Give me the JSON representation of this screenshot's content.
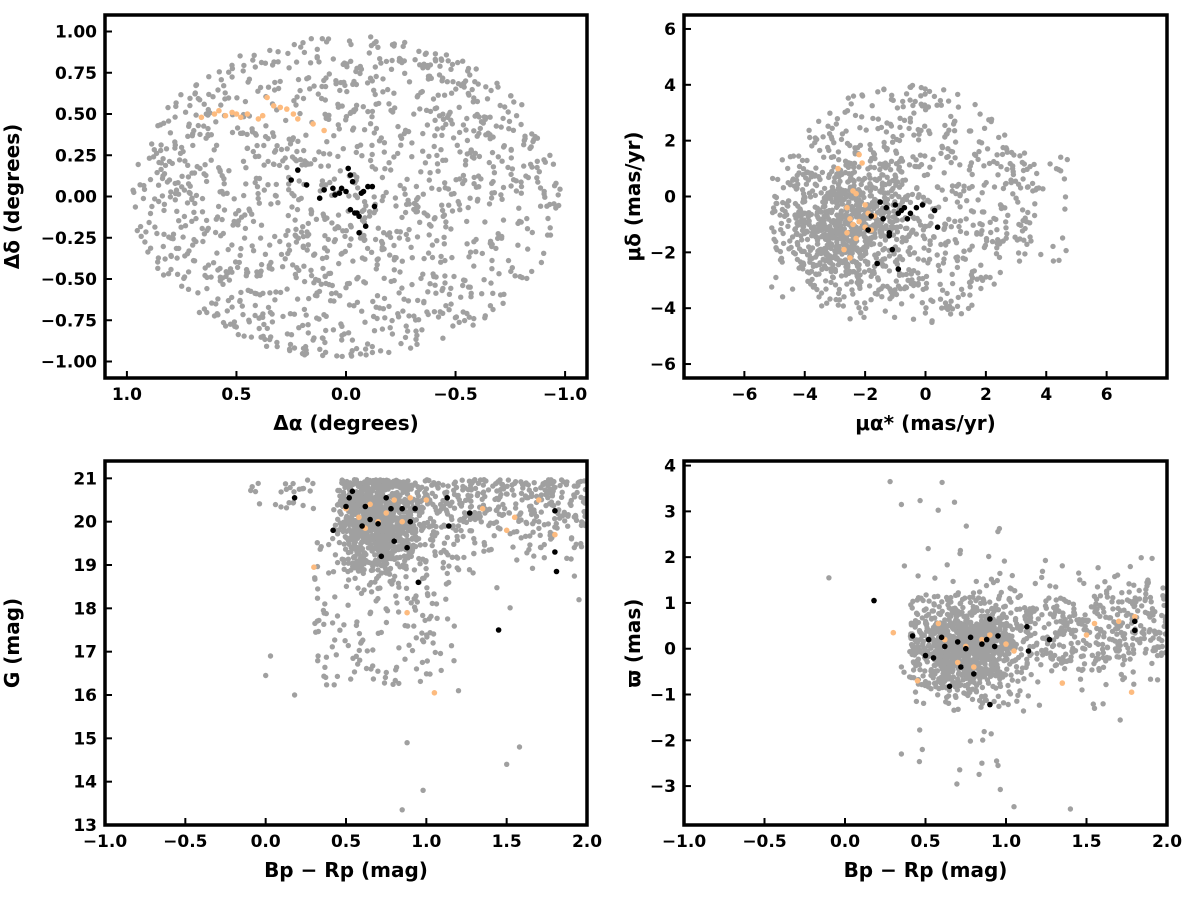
{
  "colors": {
    "field": "#a0a0a0",
    "stream": "#fdbb7f",
    "members": "#000000",
    "axes": "#000000"
  },
  "chart_data": [
    {
      "type": "scatter",
      "title": "",
      "xlabel": "Δα (degrees)",
      "ylabel": "Δδ (degrees)",
      "xlim": [
        1.1,
        -1.1
      ],
      "ylim": [
        -1.1,
        1.1
      ],
      "x_reversed": true,
      "grid": false,
      "xticks": [
        "1.0",
        "0.5",
        "0.0",
        "−0.5",
        "−1.0"
      ],
      "xtick_values": [
        1.0,
        0.5,
        0.0,
        -0.5,
        -1.0
      ],
      "yticks": [
        "−1.00",
        "−0.75",
        "−0.50",
        "−0.25",
        "0.00",
        "0.25",
        "0.50",
        "0.75",
        "1.00"
      ],
      "ytick_values": [
        -1.0,
        -0.75,
        -0.5,
        -0.25,
        0.0,
        0.25,
        0.5,
        0.75,
        1.0
      ],
      "series": [
        {
          "color": "#a0a0a0",
          "distribution": "uniform circle radius 1.0 deg",
          "count": 1300
        },
        {
          "color": "#fdbb7f",
          "x": [
            0.66,
            0.6,
            0.58,
            0.55,
            0.52,
            0.5,
            0.48,
            0.45,
            0.4,
            0.38,
            0.36,
            0.33,
            0.3,
            0.27,
            0.24,
            0.22,
            0.15,
            0.1
          ],
          "y": [
            0.48,
            0.5,
            0.52,
            0.49,
            0.51,
            0.5,
            0.48,
            0.5,
            0.47,
            0.49,
            0.6,
            0.55,
            0.54,
            0.53,
            0.5,
            0.47,
            0.44,
            0.4
          ]
        },
        {
          "color": "#000000",
          "x": [
            0.25,
            0.22,
            0.18,
            0.12,
            0.1,
            0.05,
            0.02,
            0.0,
            -0.01,
            -0.02,
            -0.04,
            -0.05,
            -0.06,
            -0.07,
            -0.08,
            -0.1,
            -0.12,
            -0.13,
            -0.03,
            -0.09,
            0.06,
            -0.06,
            -0.02,
            0.03
          ],
          "y": [
            0.1,
            0.16,
            0.07,
            -0.01,
            0.04,
            0.01,
            0.05,
            0.03,
            0.17,
            0.13,
            -0.1,
            -0.1,
            -0.12,
            0.02,
            0.03,
            0.06,
            0.06,
            -0.06,
            0.09,
            -0.18,
            0.05,
            -0.22,
            -0.08,
            0.02
          ]
        }
      ]
    },
    {
      "type": "scatter",
      "title": "",
      "xlabel": "μα* (mas/yr)",
      "ylabel": "μδ (mas/yr)",
      "xlim": [
        -8,
        8
      ],
      "ylim": [
        -6.5,
        6.5
      ],
      "grid": false,
      "xticks": [
        "−6",
        "−4",
        "−2",
        "0",
        "2",
        "4",
        "6"
      ],
      "xtick_values": [
        -6,
        -4,
        -2,
        0,
        2,
        4,
        6
      ],
      "yticks": [
        "−6",
        "−4",
        "−2",
        "0",
        "2",
        "4",
        "6"
      ],
      "ytick_values": [
        -6,
        -4,
        -2,
        0,
        2,
        4,
        6
      ],
      "series": [
        {
          "color": "#a0a0a0",
          "distribution": "dense clump near (-2.5, -1) within circle radius ~4 around (-0.5, -0.5), tail to x≈5",
          "count": 1400
        },
        {
          "color": "#fdbb7f",
          "x": [
            -2.9,
            -2.6,
            -2.5,
            -2.4,
            -2.3,
            -2.2,
            -2.1,
            -2.0,
            -1.9,
            -1.8,
            -2.7,
            -2.5,
            -2.2,
            -2.4,
            -2.6,
            -2.0,
            -2.3,
            -1.7
          ],
          "y": [
            1.0,
            -0.4,
            -0.8,
            -1.0,
            -1.5,
            1.5,
            1.2,
            -0.3,
            -0.6,
            -1.2,
            -1.9,
            -2.2,
            -0.9,
            0.2,
            -1.3,
            -1.1,
            0.1,
            -0.7
          ],
          "note_omit": true
        },
        {
          "color": "#000000",
          "x": [
            -1.8,
            -1.5,
            -1.4,
            -1.3,
            -1.2,
            -1.1,
            -1.0,
            -0.9,
            -0.8,
            -0.7,
            -0.5,
            -0.3,
            -0.1,
            0.3,
            0.4,
            -1.9,
            -1.6,
            -1.2,
            -0.9,
            -0.6
          ],
          "y": [
            -0.7,
            -0.2,
            -0.8,
            -0.4,
            -1.4,
            -1.9,
            -0.3,
            -0.6,
            -0.5,
            -0.4,
            -0.6,
            -0.4,
            -0.3,
            -0.5,
            -1.1,
            -1.2,
            -2.4,
            -1.3,
            -2.6,
            -0.8
          ]
        }
      ]
    },
    {
      "type": "scatter",
      "title": "",
      "xlabel": "Bp − Rp (mag)",
      "ylabel": "G (mag)",
      "xlim": [
        -1.0,
        2.0
      ],
      "ylim": [
        13,
        21.4
      ],
      "grid": false,
      "xticks": [
        "−1.0",
        "−0.5",
        "0.0",
        "0.5",
        "1.0",
        "1.5",
        "2.0"
      ],
      "xtick_values": [
        -1.0,
        -0.5,
        0.0,
        0.5,
        1.0,
        1.5,
        2.0
      ],
      "yticks": [
        "13",
        "14",
        "15",
        "16",
        "17",
        "18",
        "19",
        "20",
        "21"
      ],
      "ytick_values": [
        13,
        14,
        15,
        16,
        17,
        18,
        19,
        20,
        21
      ],
      "series": [
        {
          "color": "#a0a0a0",
          "distribution": "colour-magnitude: dense band G 19–21 for Bp−Rp 0.3–2.0, sparse brighter stars down to G≈13.3",
          "count": 1500
        },
        {
          "color": "#fdbb7f",
          "x": [
            0.3,
            0.5,
            0.58,
            0.62,
            0.65,
            0.7,
            0.75,
            0.8,
            0.85,
            0.88,
            0.9,
            1.0,
            1.05,
            1.35,
            1.5,
            1.55,
            1.7,
            1.8
          ],
          "y": [
            18.95,
            20.3,
            20.1,
            19.85,
            20.4,
            20.0,
            20.2,
            20.5,
            20.0,
            17.9,
            20.55,
            20.5,
            16.05,
            20.3,
            19.8,
            20.1,
            20.5,
            19.7
          ]
        },
        {
          "color": "#000000",
          "x": [
            0.18,
            0.42,
            0.5,
            0.52,
            0.54,
            0.6,
            0.62,
            0.65,
            0.7,
            0.72,
            0.75,
            0.78,
            0.8,
            0.85,
            0.88,
            0.9,
            0.93,
            0.95,
            1.13,
            1.14,
            1.27,
            1.8,
            1.8,
            1.81,
            1.45
          ],
          "y": [
            20.55,
            19.8,
            20.35,
            20.55,
            20.7,
            19.9,
            20.35,
            20.05,
            19.95,
            19.2,
            20.55,
            20.3,
            19.55,
            20.3,
            19.4,
            20.0,
            20.3,
            18.6,
            20.55,
            19.9,
            20.2,
            20.25,
            19.3,
            18.85,
            17.5
          ]
        }
      ]
    },
    {
      "type": "scatter",
      "title": "",
      "xlabel": "Bp − Rp (mag)",
      "ylabel": "ϖ (mas)",
      "xlim": [
        -1.0,
        2.0
      ],
      "ylim": [
        -3.85,
        4.1
      ],
      "grid": false,
      "xticks": [
        "−1.0",
        "−0.5",
        "0.0",
        "0.5",
        "1.0",
        "1.5",
        "2.0"
      ],
      "xtick_values": [
        -1.0,
        -0.5,
        0.0,
        0.5,
        1.0,
        1.5,
        2.0
      ],
      "yticks": [
        "−3",
        "−2",
        "−1",
        "0",
        "1",
        "2",
        "3",
        "4"
      ],
      "ytick_values": [
        -3,
        -2,
        -1,
        0,
        1,
        2,
        3,
        4
      ],
      "series": [
        {
          "color": "#a0a0a0",
          "distribution": "parallax vs colour: dense band ϖ≈0 (spread ±1) for Bp−Rp 0.4–2.0, rising slightly at red end",
          "count": 1500
        },
        {
          "color": "#fdbb7f",
          "x": [
            0.3,
            0.45,
            0.58,
            0.62,
            0.7,
            0.75,
            0.8,
            0.85,
            0.9,
            1.0,
            1.05,
            1.35,
            1.5,
            1.55,
            1.7,
            1.78,
            1.8
          ],
          "y": [
            0.35,
            -0.7,
            0.55,
            0.2,
            -0.3,
            0.05,
            -0.4,
            0.2,
            0.3,
            0.1,
            -0.05,
            -0.75,
            0.3,
            0.55,
            0.6,
            -0.95,
            0.7
          ]
        },
        {
          "color": "#000000",
          "x": [
            0.18,
            0.42,
            0.5,
            0.52,
            0.55,
            0.6,
            0.62,
            0.65,
            0.7,
            0.72,
            0.75,
            0.78,
            0.8,
            0.85,
            0.88,
            0.9,
            0.93,
            0.95,
            1.13,
            1.14,
            1.27,
            1.8,
            1.8,
            0.9
          ],
          "y": [
            1.05,
            0.28,
            -0.15,
            0.2,
            -0.2,
            0.25,
            0.05,
            -0.82,
            0.15,
            -0.4,
            0.0,
            0.25,
            -0.55,
            0.1,
            0.2,
            0.65,
            0.05,
            0.28,
            0.48,
            -0.05,
            0.2,
            0.4,
            0.6,
            -1.22
          ]
        }
      ]
    }
  ]
}
